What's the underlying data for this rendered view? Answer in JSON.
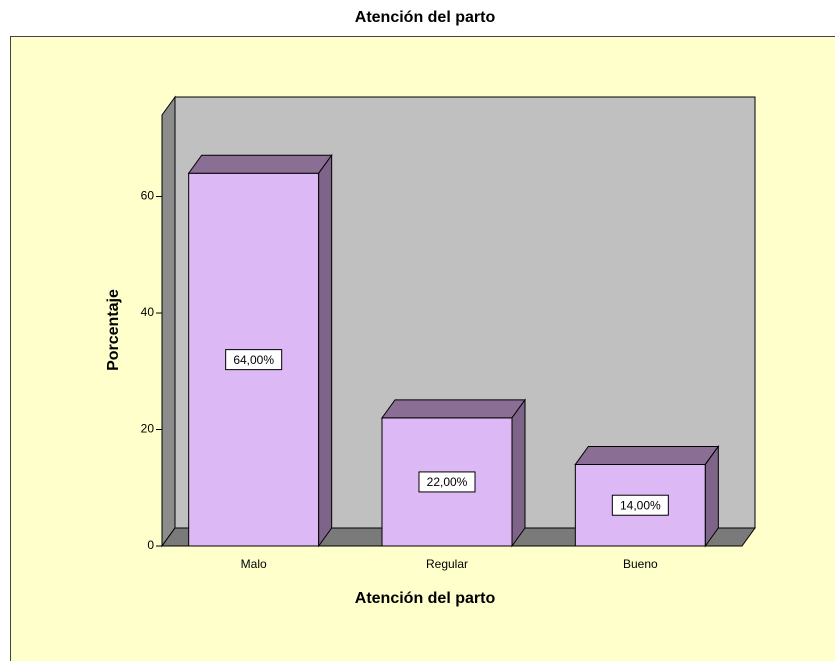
{
  "chart_data": {
    "type": "bar3d",
    "title": "Atención del parto",
    "categories": [
      "Malo",
      "Regular",
      "Bueno"
    ],
    "values": [
      64,
      22,
      14
    ],
    "value_labels": [
      "64,00%",
      "22,00%",
      "14,00%"
    ],
    "color": "#dcb8f4",
    "xlabel": "Atención del parto",
    "ylabel": "Porcentaje",
    "ylim": [
      0,
      74
    ],
    "yticks": [
      0,
      20,
      40,
      60
    ]
  }
}
